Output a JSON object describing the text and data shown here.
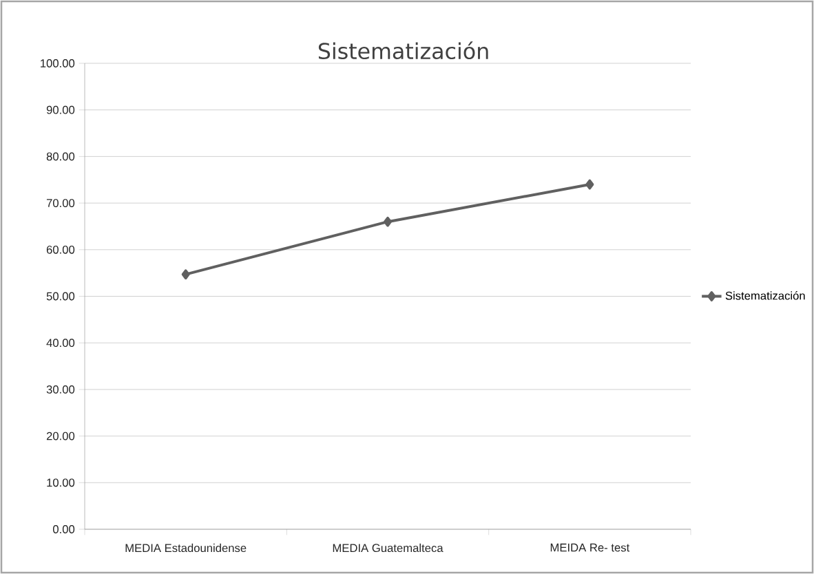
{
  "chart_data": {
    "type": "line",
    "title": "Sistematización",
    "categories": [
      "MEDIA Estadounidense",
      "MEDIA Guatemalteca",
      "MEIDA Re- test"
    ],
    "series": [
      {
        "name": "Sistematización",
        "color": "#606060",
        "values": [
          54.7,
          66.0,
          74.0
        ]
      }
    ],
    "ylim": [
      0,
      100
    ],
    "yticks": [
      {
        "value": 0,
        "label": "0.00"
      },
      {
        "value": 10,
        "label": "10.00"
      },
      {
        "value": 20,
        "label": "20.00"
      },
      {
        "value": 30,
        "label": "30.00"
      },
      {
        "value": 40,
        "label": "40.00"
      },
      {
        "value": 50,
        "label": "50.00"
      },
      {
        "value": 60,
        "label": "60.00"
      },
      {
        "value": 70,
        "label": "70.00"
      },
      {
        "value": 80,
        "label": "80.00"
      },
      {
        "value": 90,
        "label": "90.00"
      },
      {
        "value": 100,
        "label": "100.00"
      }
    ],
    "grid": "y",
    "legend": "right",
    "marker": "diamond",
    "line_style": "solid"
  }
}
